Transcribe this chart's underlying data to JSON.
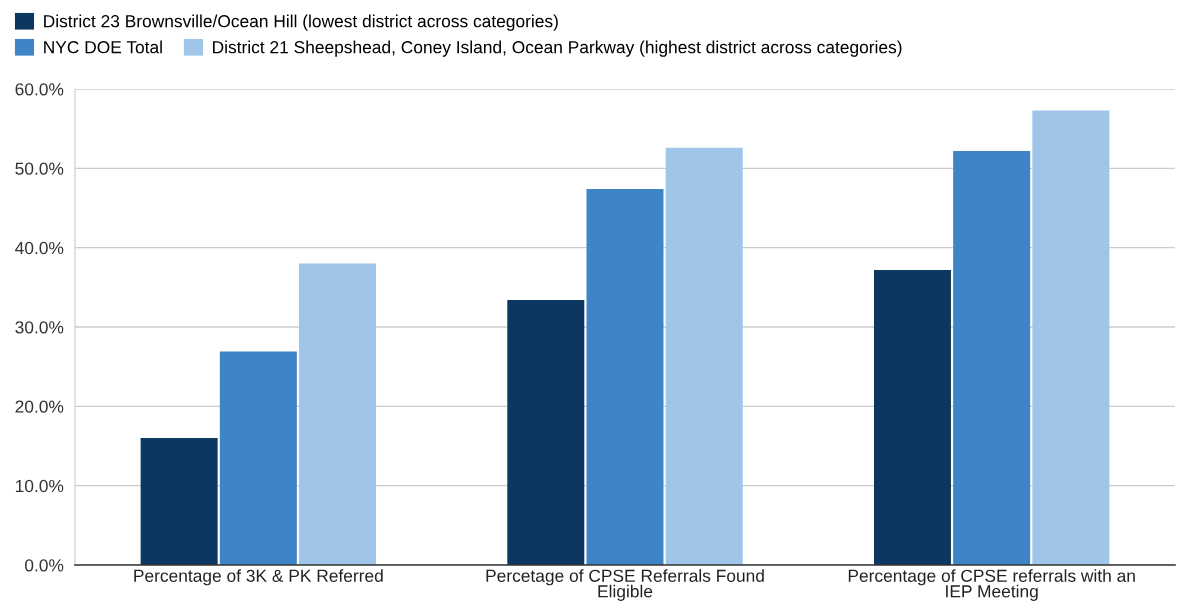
{
  "chart_data": {
    "type": "bar",
    "categories": [
      "Percentage of 3K & PK Referred",
      "Percetage of CPSE Referrals Found\nEligible",
      "Percentage of CPSE referrals with an\nIEP Meeting"
    ],
    "series": [
      {
        "name": "District 23 Brownsville/Ocean Hill (lowest district across categories)",
        "color": "#0b3761",
        "values": [
          16.0,
          33.4,
          37.2
        ]
      },
      {
        "name": "NYC DOE Total",
        "color": "#3d85c6",
        "values": [
          26.9,
          47.4,
          52.2
        ]
      },
      {
        "name": "District 21 Sheepshead, Coney Island, Ocean Parkway (highest district across categories)",
        "color": "#9fc5e8",
        "values": [
          38.0,
          52.6,
          57.3
        ]
      }
    ],
    "ylim": [
      0,
      60
    ],
    "yticks": [
      {
        "value": 0,
        "label": "0.0%"
      },
      {
        "value": 10,
        "label": "10.0%"
      },
      {
        "value": 20,
        "label": "20.0%"
      },
      {
        "value": 30,
        "label": "30.0%"
      },
      {
        "value": 40,
        "label": "40.0%"
      },
      {
        "value": 50,
        "label": "50.0%"
      },
      {
        "value": 60,
        "label": "60.0%"
      }
    ],
    "grid": "y",
    "legend": "top"
  }
}
